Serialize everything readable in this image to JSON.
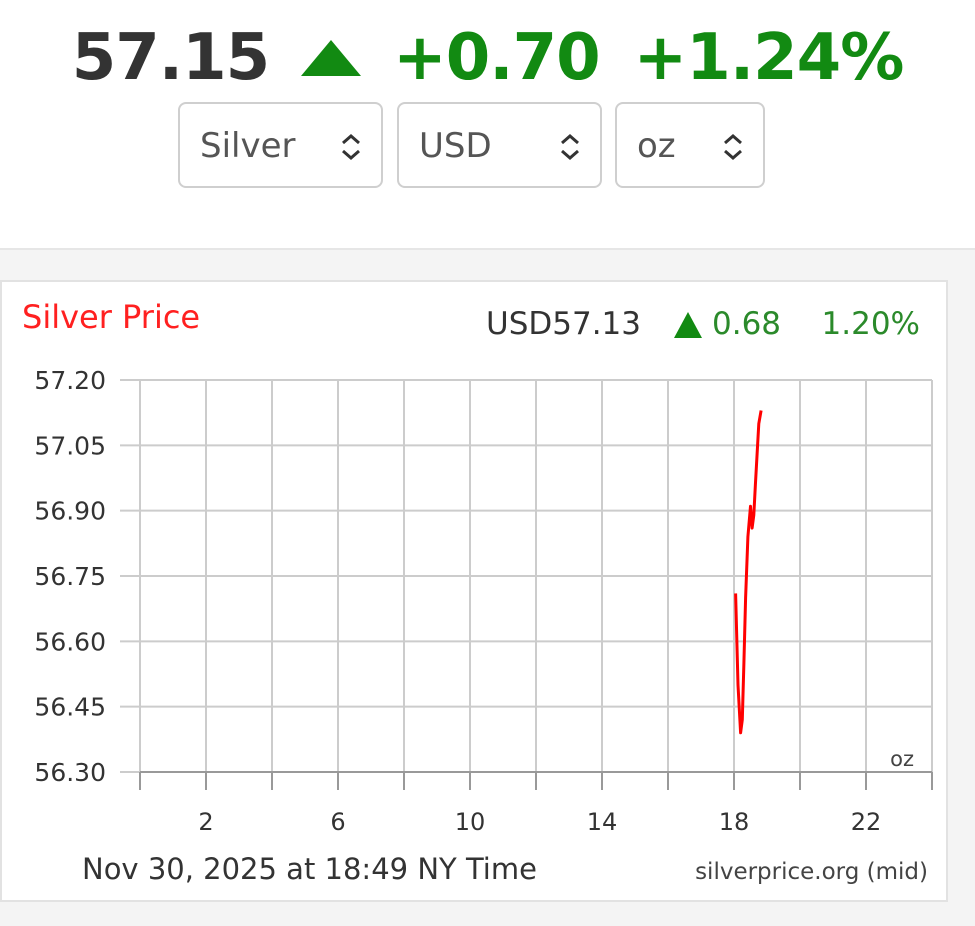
{
  "header": {
    "price": "57.15",
    "change": "+0.70",
    "change_pct": "+1.24%",
    "up_color": "#128a12"
  },
  "selectors": [
    {
      "label": "Silver"
    },
    {
      "label": "USD"
    },
    {
      "label": "oz"
    }
  ],
  "chart_data": {
    "type": "line",
    "title": "Silver Price",
    "quote": {
      "prefix": "USD",
      "price": "57.13",
      "change": "0.68",
      "change_pct": "1.20%"
    },
    "unit_label": "oz",
    "footer_date": "Nov 30, 2025 at 18:49 NY Time",
    "source": "silverprice.org (mid)",
    "x_ticks": [
      2,
      6,
      10,
      14,
      18,
      22
    ],
    "xlim": [
      0,
      24
    ],
    "y_ticks": [
      "57.20",
      "57.05",
      "56.90",
      "56.75",
      "56.60",
      "56.45",
      "56.30"
    ],
    "ylim": [
      56.3,
      57.2
    ],
    "grid": true,
    "line_color": "#ff0000",
    "series": [
      {
        "x": [
          18.05,
          18.12,
          18.2,
          18.25,
          18.3,
          18.35,
          18.42,
          18.5,
          18.55,
          18.6,
          18.65,
          18.7,
          18.75,
          18.82
        ],
        "y": [
          56.71,
          56.5,
          56.39,
          56.42,
          56.55,
          56.7,
          56.84,
          56.91,
          56.86,
          56.89,
          56.96,
          57.03,
          57.1,
          57.13
        ]
      }
    ]
  }
}
